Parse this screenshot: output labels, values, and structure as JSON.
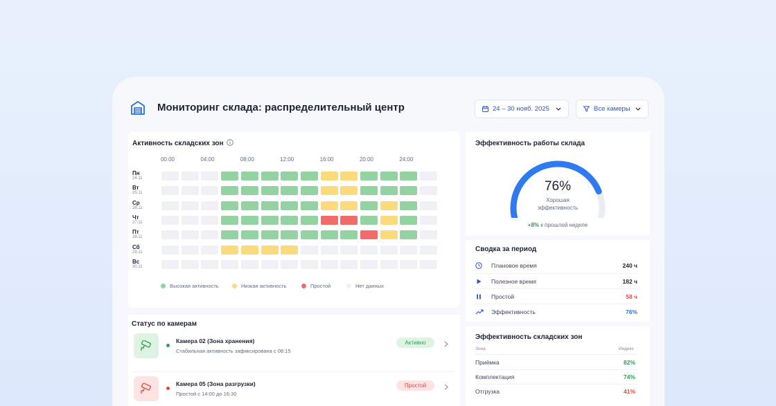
{
  "header": {
    "title": "Мониторинг склада: распределительный центр",
    "date_range": "24 – 30 нояб. 2025",
    "camera_filter": "Все камеры"
  },
  "activity": {
    "title": "Активность складских зон",
    "time_ticks": [
      "00:00",
      "04:00",
      "08:00",
      "12:00",
      "16:00",
      "20:00",
      "24:00"
    ],
    "days": [
      {
        "name": "Пн",
        "date": "24.11",
        "cells": [
          "N",
          "N",
          "N",
          "H",
          "H",
          "H",
          "H",
          "H",
          "L",
          "L",
          "H",
          "H",
          "H",
          "N"
        ]
      },
      {
        "name": "Вт",
        "date": "25.11",
        "cells": [
          "N",
          "N",
          "N",
          "H",
          "H",
          "H",
          "H",
          "H",
          "L",
          "L",
          "H",
          "H",
          "H",
          "N"
        ]
      },
      {
        "name": "Ср",
        "date": "26.11",
        "cells": [
          "N",
          "N",
          "N",
          "H",
          "H",
          "H",
          "H",
          "H",
          "L",
          "L",
          "H",
          "L",
          "H",
          "N"
        ]
      },
      {
        "name": "Чт",
        "date": "27.11",
        "cells": [
          "N",
          "N",
          "N",
          "H",
          "H",
          "H",
          "H",
          "H",
          "P",
          "P",
          "H",
          "L",
          "H",
          "N"
        ]
      },
      {
        "name": "Пт",
        "date": "28.11",
        "cells": [
          "N",
          "N",
          "N",
          "H",
          "H",
          "H",
          "H",
          "H",
          "H",
          "H",
          "P",
          "L",
          "H",
          "N"
        ]
      },
      {
        "name": "Сб",
        "date": "29.11",
        "cells": [
          "N",
          "N",
          "N",
          "L",
          "L",
          "L",
          "L",
          "N",
          "N",
          "N",
          "N",
          "N",
          "N",
          "N"
        ]
      },
      {
        "name": "Вс",
        "date": "30.11",
        "cells": [
          "N",
          "N",
          "N",
          "N",
          "N",
          "N",
          "N",
          "N",
          "N",
          "N",
          "N",
          "N",
          "N",
          "N"
        ]
      }
    ],
    "legend": [
      {
        "key": "H",
        "label": "Высокая активность",
        "color": "#93d3a2"
      },
      {
        "key": "L",
        "label": "Низкая активность",
        "color": "#fbdb7c"
      },
      {
        "key": "P",
        "label": "Простой",
        "color": "#f26b6b"
      },
      {
        "key": "N",
        "label": "Нет данных",
        "color": "#eff1f5"
      }
    ]
  },
  "cameras": {
    "title": "Статус по камерам",
    "items": [
      {
        "name": "Камера 02 (Зона хранения)",
        "detail": "Стабильная активность зафиксирована с 08:15",
        "status": "Активно",
        "status_color": "#2e9e4e"
      },
      {
        "name": "Камера 05 (Зона разгрузки)",
        "detail": "Простой с 14:00 до 16:30",
        "status": "Простой",
        "status_color": "#e0493f"
      }
    ]
  },
  "efficiency": {
    "title": "Эффективность работы склада",
    "value_text": "76%",
    "value": 0.76,
    "label_line1": "Хорошая",
    "label_line2": "эффективность",
    "delta": "+8%",
    "delta_text": "к прошлой неделе"
  },
  "summary": {
    "title": "Сводка за период",
    "rows": [
      {
        "icon": "clock-icon",
        "label": "Плановое время",
        "value": "240 ч",
        "color": "#1c2333"
      },
      {
        "icon": "play-icon",
        "label": "Полезное время",
        "value": "182 ч",
        "color": "#1c2333"
      },
      {
        "icon": "pause-icon",
        "label": "Простой",
        "value": "58 ч",
        "color": "#e0493f"
      },
      {
        "icon": "trend-up-icon",
        "label": "Эффективность",
        "value": "76%",
        "color": "#2b6fd6"
      }
    ]
  },
  "zones": {
    "title": "Эффективность складских зон",
    "col_zone": "Зона",
    "col_index": "Индекс",
    "rows": [
      {
        "name": "Приёмка",
        "value": "82%",
        "color": "#2e9e4e"
      },
      {
        "name": "Комплектация",
        "value": "74%",
        "color": "#2e9e4e"
      },
      {
        "name": "Отгрузка",
        "value": "41%",
        "color": "#e0493f"
      }
    ]
  },
  "colors": {
    "accent": "#2b6fd6",
    "good": "#2e9e4e",
    "bad": "#e0493f",
    "warn": "#fbdb7c"
  }
}
